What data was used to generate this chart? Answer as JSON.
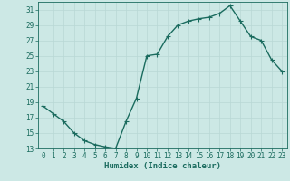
{
  "x": [
    0,
    1,
    2,
    3,
    4,
    5,
    6,
    7,
    8,
    9,
    10,
    11,
    12,
    13,
    14,
    15,
    16,
    17,
    18,
    19,
    20,
    21,
    22,
    23
  ],
  "y": [
    18.5,
    17.5,
    16.5,
    15.0,
    14.0,
    13.5,
    13.2,
    13.0,
    16.5,
    19.5,
    25.0,
    25.2,
    27.5,
    29.0,
    29.5,
    29.8,
    30.0,
    30.5,
    31.5,
    29.5,
    27.5,
    27.0,
    24.5,
    23.0
  ],
  "line_color": "#1a6b5e",
  "marker": "D",
  "marker_size": 1.8,
  "bg_color": "#cce8e5",
  "grid_color": "#b8d8d5",
  "xlabel": "Humidex (Indice chaleur)",
  "ylim": [
    13,
    32
  ],
  "xlim": [
    -0.5,
    23.5
  ],
  "yticks": [
    13,
    15,
    17,
    19,
    21,
    23,
    25,
    27,
    29,
    31
  ],
  "xticks": [
    0,
    1,
    2,
    3,
    4,
    5,
    6,
    7,
    8,
    9,
    10,
    11,
    12,
    13,
    14,
    15,
    16,
    17,
    18,
    19,
    20,
    21,
    22,
    23
  ],
  "tick_fontsize": 5.5,
  "xlabel_fontsize": 6.5,
  "line_width": 1.0
}
